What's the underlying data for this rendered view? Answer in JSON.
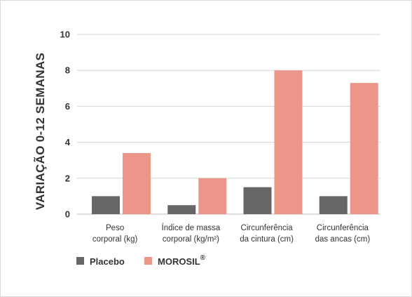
{
  "chart_data": {
    "type": "bar",
    "ylabel": "VARIAÇÃO 0-12 SEMANAS",
    "xlabel": "",
    "ylim": [
      0,
      10
    ],
    "yticks": [
      0,
      2,
      4,
      6,
      8,
      10
    ],
    "grid": true,
    "legend_position": "bottom-left",
    "categories": [
      [
        "Peso",
        "corporal (kg)"
      ],
      [
        "Índice de massa",
        "corporal (kg/m²)"
      ],
      [
        "Circunferência",
        "da cintura (cm)"
      ],
      [
        "Circunferência",
        "das ancas (cm)"
      ]
    ],
    "series": [
      {
        "name": "Placebo",
        "color": "#666666",
        "values": [
          1.0,
          0.5,
          1.5,
          1.0
        ]
      },
      {
        "name": "MOROSIL",
        "name_superscript": "®",
        "color": "#ec968a",
        "values": [
          3.4,
          2.0,
          8.0,
          7.3
        ]
      }
    ]
  }
}
